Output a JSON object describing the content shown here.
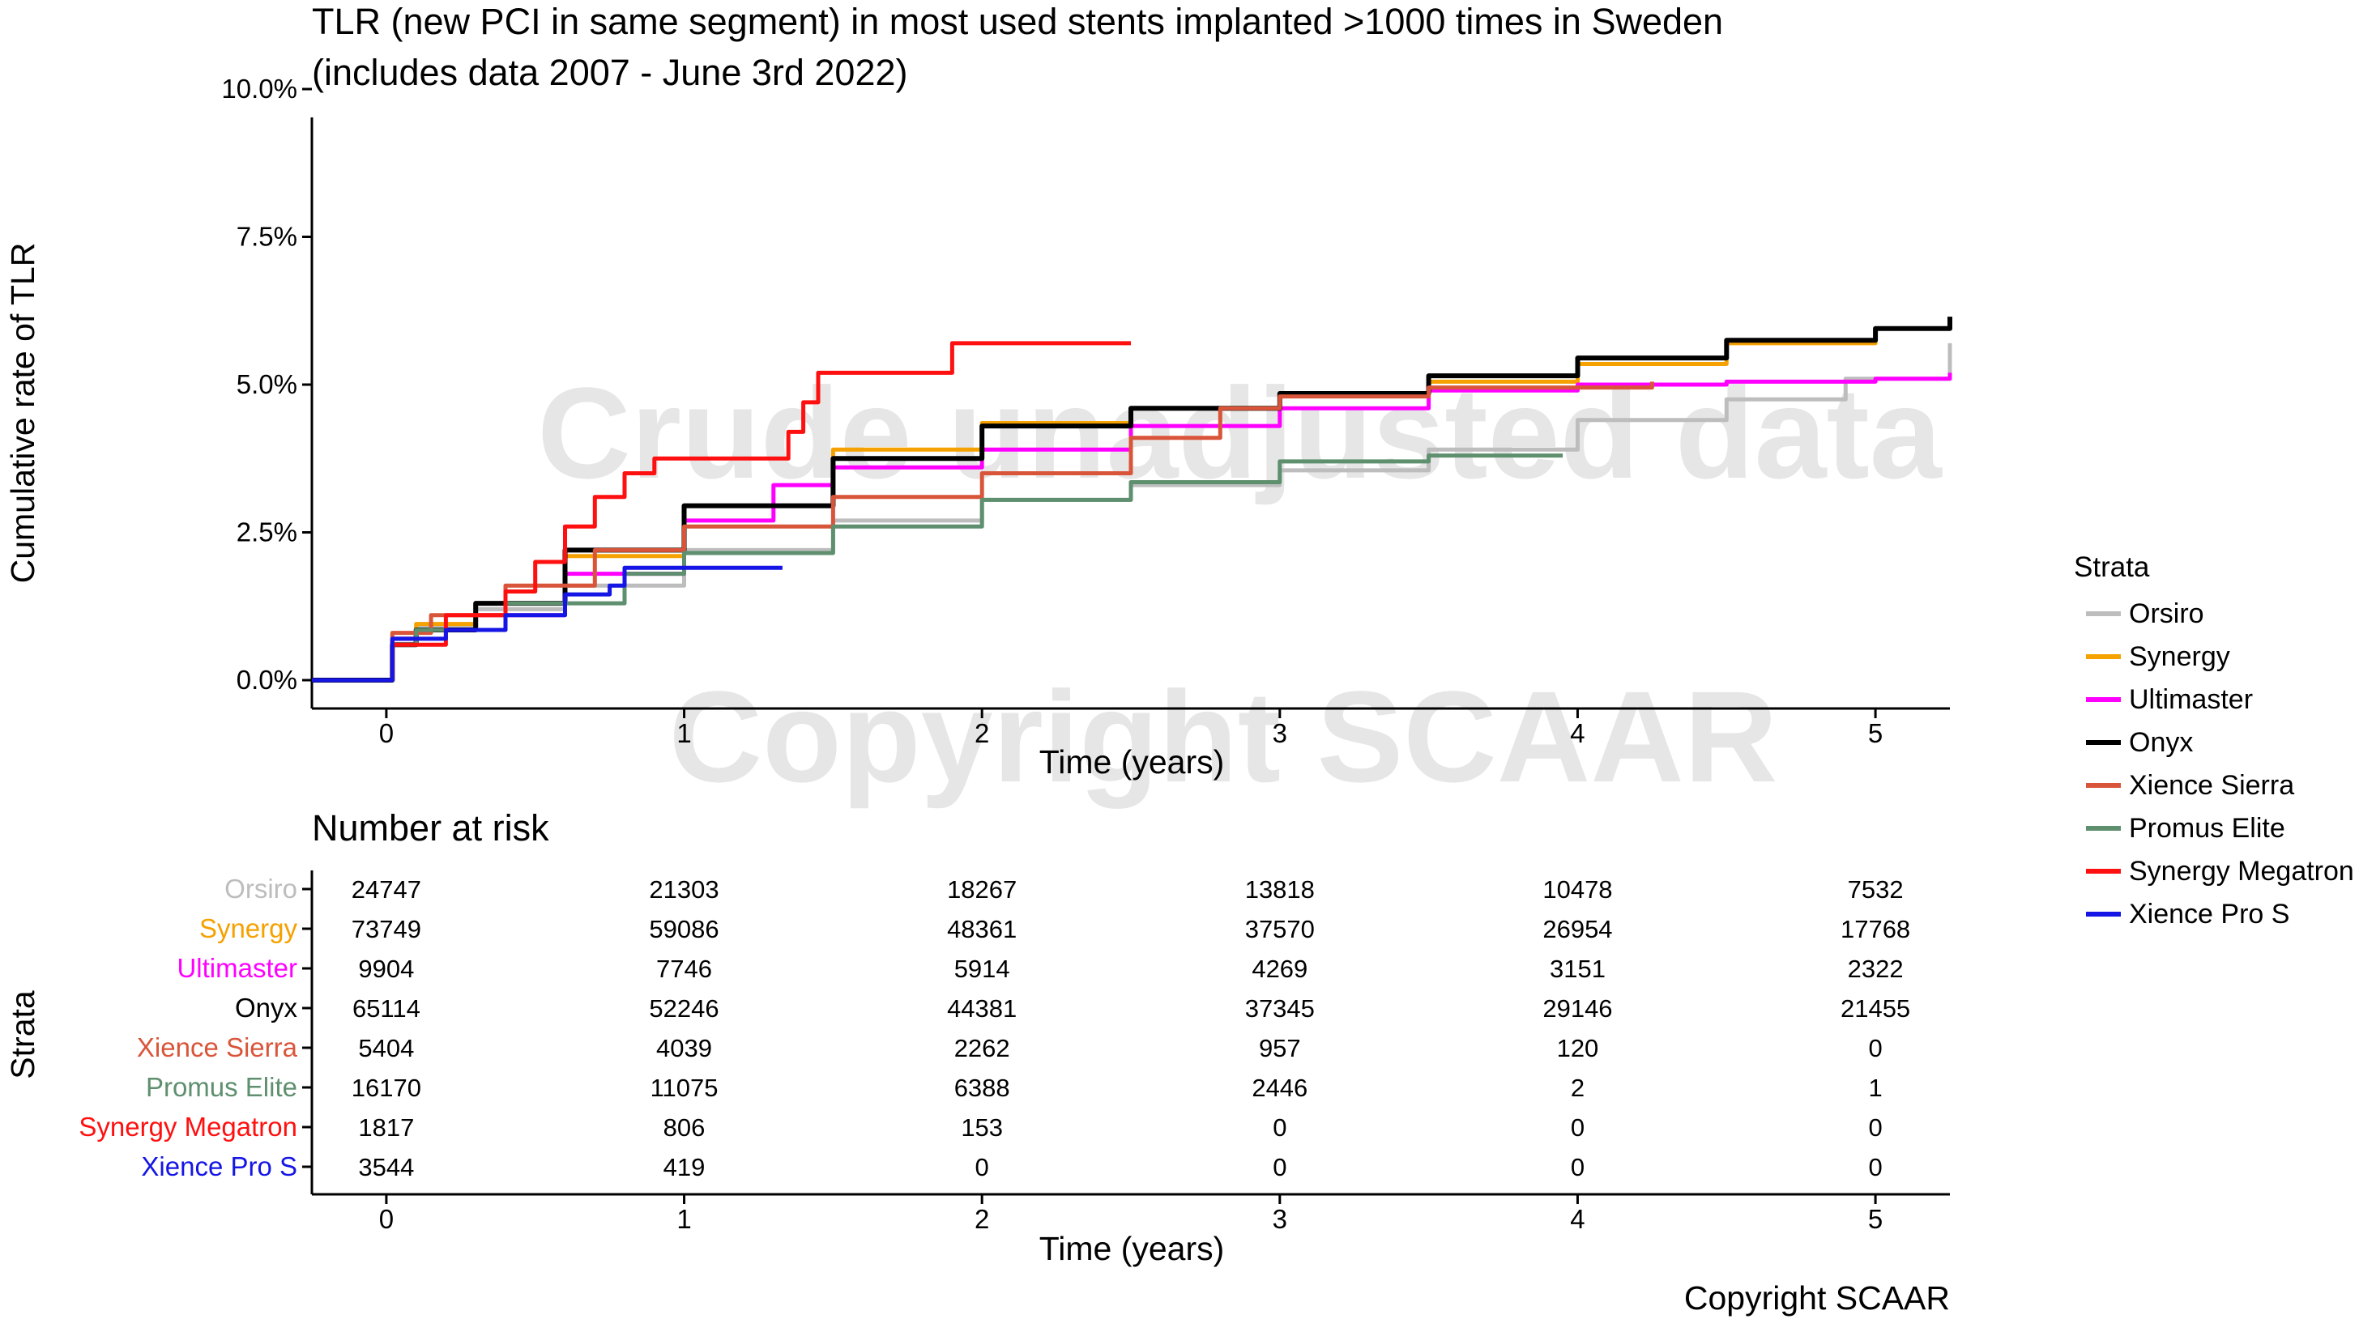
{
  "chart_data": {
    "type": "line",
    "title": "TLR (new PCI in same segment) in most used stents implanted >1000 times in Sweden",
    "subtitle": "(includes data 2007 - June 3rd 2022)",
    "xlabel": "Time (years)",
    "ylabel": "Cumulative rate of TLR",
    "xlim": [
      -0.25,
      5.25
    ],
    "ylim": [
      0,
      10
    ],
    "x_ticks": [
      0,
      1,
      2,
      3,
      4,
      5
    ],
    "x_tick_labels": [
      "0",
      "1",
      "2",
      "3",
      "4",
      "5"
    ],
    "y_ticks": [
      0,
      2.5,
      5,
      7.5,
      10
    ],
    "y_tick_labels": [
      "0.0%",
      "2.5%",
      "5.0%",
      "7.5%",
      "10.0%"
    ],
    "legend_title": "Strata",
    "legend_position": "right",
    "watermarks": [
      "Crude unadjusted data",
      "Copyright SCAAR"
    ],
    "series": [
      {
        "name": "Orsiro",
        "color": "#bdbdbd",
        "points": [
          [
            -0.25,
            0
          ],
          [
            0,
            0
          ],
          [
            0.02,
            0.7
          ],
          [
            0.1,
            0.9
          ],
          [
            0.3,
            1.2
          ],
          [
            0.6,
            1.6
          ],
          [
            1,
            2.2
          ],
          [
            1.5,
            2.7
          ],
          [
            2,
            3.05
          ],
          [
            2.5,
            3.3
          ],
          [
            3,
            3.55
          ],
          [
            3.5,
            3.9
          ],
          [
            4,
            4.4
          ],
          [
            4.5,
            4.75
          ],
          [
            4.9,
            5.1
          ],
          [
            5.25,
            5.7
          ]
        ]
      },
      {
        "name": "Synergy",
        "color": "#f5a100",
        "points": [
          [
            -0.25,
            0
          ],
          [
            0,
            0
          ],
          [
            0.02,
            0.7
          ],
          [
            0.1,
            0.95
          ],
          [
            0.3,
            1.3
          ],
          [
            0.6,
            2.1
          ],
          [
            1,
            2.95
          ],
          [
            1.5,
            3.9
          ],
          [
            2,
            4.35
          ],
          [
            2.5,
            4.6
          ],
          [
            3,
            4.85
          ],
          [
            3.5,
            5.05
          ],
          [
            4,
            5.35
          ],
          [
            4.5,
            5.7
          ],
          [
            5,
            5.95
          ],
          [
            5.25,
            6.1
          ]
        ]
      },
      {
        "name": "Ultimaster",
        "color": "#ff00ff",
        "points": [
          [
            -0.25,
            0
          ],
          [
            0,
            0
          ],
          [
            0.02,
            0.7
          ],
          [
            0.1,
            0.85
          ],
          [
            0.3,
            1.1
          ],
          [
            0.6,
            1.8
          ],
          [
            1,
            2.7
          ],
          [
            1.3,
            3.3
          ],
          [
            1.5,
            3.6
          ],
          [
            2,
            3.9
          ],
          [
            2.5,
            4.3
          ],
          [
            3,
            4.6
          ],
          [
            3.5,
            4.9
          ],
          [
            4,
            5.0
          ],
          [
            4.5,
            5.05
          ],
          [
            5,
            5.1
          ],
          [
            5.25,
            5.2
          ]
        ]
      },
      {
        "name": "Onyx",
        "color": "#000000",
        "points": [
          [
            -0.25,
            0
          ],
          [
            0,
            0
          ],
          [
            0.02,
            0.6
          ],
          [
            0.1,
            0.85
          ],
          [
            0.3,
            1.3
          ],
          [
            0.6,
            2.2
          ],
          [
            1,
            2.95
          ],
          [
            1.5,
            3.75
          ],
          [
            2,
            4.3
          ],
          [
            2.5,
            4.6
          ],
          [
            3,
            4.85
          ],
          [
            3.5,
            5.15
          ],
          [
            4,
            5.45
          ],
          [
            4.5,
            5.75
          ],
          [
            5,
            5.95
          ],
          [
            5.25,
            6.15
          ]
        ]
      },
      {
        "name": "Xience Sierra",
        "color": "#d9553a",
        "points": [
          [
            -0.25,
            0
          ],
          [
            0,
            0
          ],
          [
            0.02,
            0.8
          ],
          [
            0.15,
            1.1
          ],
          [
            0.4,
            1.6
          ],
          [
            0.7,
            2.2
          ],
          [
            1,
            2.6
          ],
          [
            1.5,
            3.1
          ],
          [
            2,
            3.5
          ],
          [
            2.5,
            4.1
          ],
          [
            2.8,
            4.6
          ],
          [
            3,
            4.8
          ],
          [
            3.5,
            4.95
          ],
          [
            4.25,
            5.05
          ]
        ]
      },
      {
        "name": "Promus Elite",
        "color": "#5e8f6e",
        "points": [
          [
            -0.25,
            0
          ],
          [
            0,
            0
          ],
          [
            0.02,
            0.6
          ],
          [
            0.1,
            0.85
          ],
          [
            0.4,
            1.3
          ],
          [
            0.8,
            1.8
          ],
          [
            1,
            2.15
          ],
          [
            1.5,
            2.6
          ],
          [
            2,
            3.05
          ],
          [
            2.5,
            3.35
          ],
          [
            3,
            3.7
          ],
          [
            3.5,
            3.8
          ],
          [
            3.95,
            3.8
          ]
        ]
      },
      {
        "name": "Synergy Megatron",
        "color": "#ff1010",
        "points": [
          [
            -0.25,
            0
          ],
          [
            0,
            0
          ],
          [
            0.02,
            0.6
          ],
          [
            0.2,
            1.1
          ],
          [
            0.4,
            1.5
          ],
          [
            0.5,
            2.0
          ],
          [
            0.6,
            2.6
          ],
          [
            0.7,
            3.1
          ],
          [
            0.8,
            3.5
          ],
          [
            0.9,
            3.75
          ],
          [
            1.2,
            3.75
          ],
          [
            1.35,
            4.2
          ],
          [
            1.4,
            4.7
          ],
          [
            1.45,
            5.2
          ],
          [
            1.9,
            5.2
          ],
          [
            1.9,
            5.7
          ],
          [
            2.5,
            5.7
          ]
        ]
      },
      {
        "name": "Xience Pro S",
        "color": "#1515e6",
        "points": [
          [
            -0.25,
            0
          ],
          [
            0,
            0
          ],
          [
            0.02,
            0.7
          ],
          [
            0.2,
            0.85
          ],
          [
            0.4,
            1.1
          ],
          [
            0.6,
            1.45
          ],
          [
            0.75,
            1.6
          ],
          [
            0.8,
            1.9
          ],
          [
            1.33,
            1.9
          ]
        ]
      }
    ],
    "risk_table": {
      "title": "Number at risk",
      "xlabel": "Time (years)",
      "ylabel": "Strata",
      "times": [
        0,
        1,
        2,
        3,
        4,
        5
      ],
      "rows": [
        {
          "name": "Orsiro",
          "values": [
            "24747",
            "21303",
            "18267",
            "13818",
            "10478",
            "7532"
          ]
        },
        {
          "name": "Synergy",
          "values": [
            "73749",
            "59086",
            "48361",
            "37570",
            "26954",
            "17768"
          ]
        },
        {
          "name": "Ultimaster",
          "values": [
            "9904",
            "7746",
            "5914",
            "4269",
            "3151",
            "2322"
          ]
        },
        {
          "name": "Onyx",
          "values": [
            "65114",
            "52246",
            "44381",
            "37345",
            "29146",
            "21455"
          ]
        },
        {
          "name": "Xience Sierra",
          "values": [
            "5404",
            "4039",
            "2262",
            "957",
            "120",
            "0"
          ]
        },
        {
          "name": "Promus Elite",
          "values": [
            "16170",
            "11075",
            "6388",
            "2446",
            "2",
            "1"
          ]
        },
        {
          "name": "Synergy Megatron",
          "values": [
            "1817",
            "806",
            "153",
            "0",
            "0",
            "0"
          ]
        },
        {
          "name": "Xience Pro S",
          "values": [
            "3544",
            "419",
            "0",
            "0",
            "0",
            "0"
          ]
        }
      ]
    }
  },
  "copyright": "Copyright SCAAR"
}
